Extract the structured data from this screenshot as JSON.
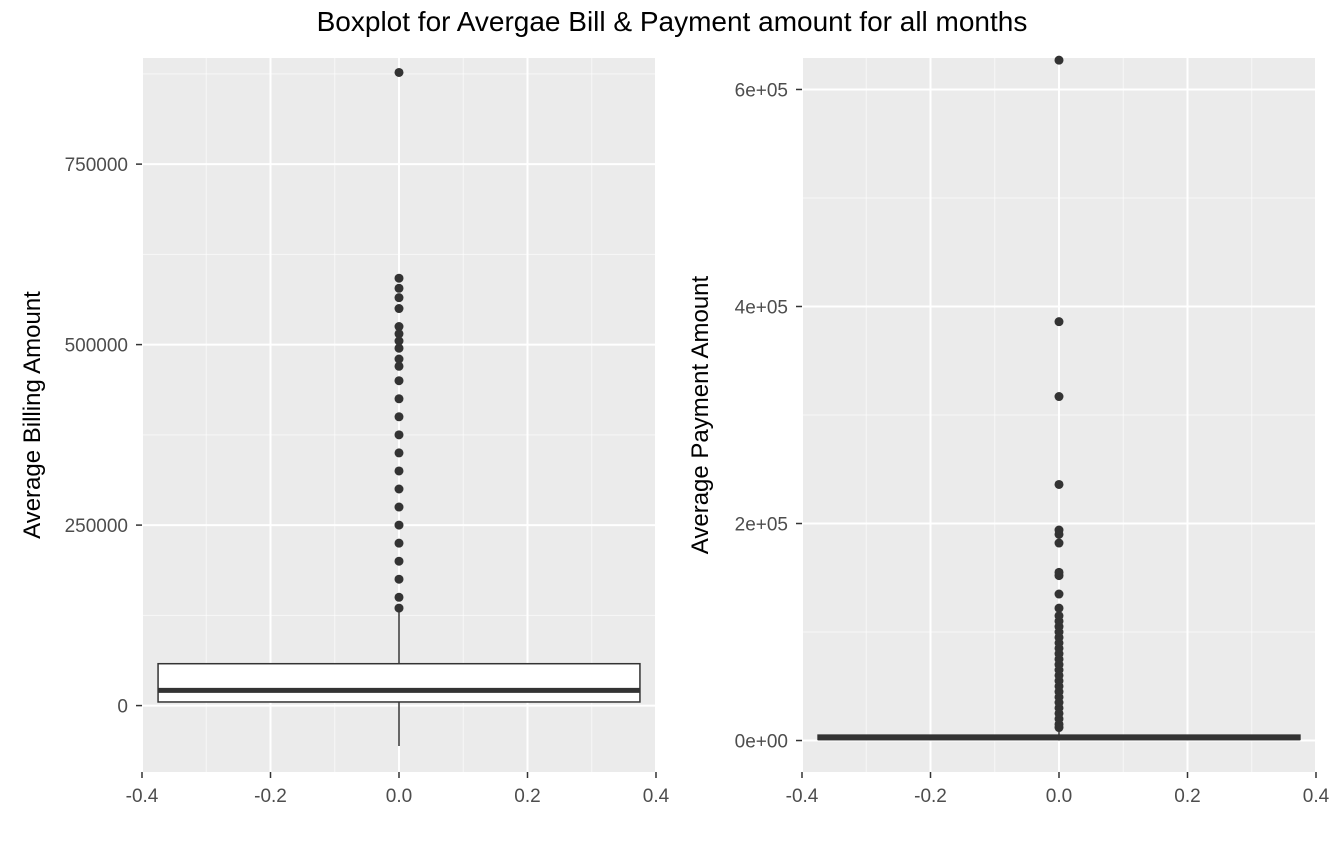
{
  "title": "Boxplot for Avergae Bill & Payment amount for all months",
  "colors": {
    "panel_background": "#ebebeb",
    "grid_major": "#ffffff",
    "box_fill": "#ffffff",
    "box_line": "#333333",
    "outlier": "#333333",
    "tick_text": "#4d4d4d"
  },
  "chart_data": [
    {
      "type": "boxplot",
      "title": "",
      "xlabel": "",
      "ylabel": "Average Billing Amount",
      "xlim": [
        -0.4,
        0.4
      ],
      "ylim": [
        -92000,
        897000
      ],
      "x_ticks": [
        -0.4,
        -0.2,
        0.0,
        0.2,
        0.4
      ],
      "x_tick_labels": [
        "-0.4",
        "-0.2",
        "0.0",
        "0.2",
        "0.4"
      ],
      "y_ticks": [
        0,
        250000,
        500000,
        750000
      ],
      "y_tick_labels": [
        "0",
        "250000",
        "500000",
        "750000"
      ],
      "grid": true,
      "box": {
        "x_center": 0.0,
        "width": 0.75,
        "lower_whisker": -56000,
        "q1": 5000,
        "median": 21000,
        "q3": 58000,
        "upper_whisker": 132000
      },
      "outliers": [
        135000,
        150000,
        175000,
        200000,
        225000,
        250000,
        275000,
        300000,
        325000,
        350000,
        375000,
        400000,
        425000,
        450000,
        470000,
        480000,
        495000,
        505000,
        515000,
        525000,
        550000,
        565000,
        578000,
        592000,
        877000
      ]
    },
    {
      "type": "boxplot",
      "title": "",
      "xlabel": "",
      "ylabel": "Average Payment Amount",
      "xlim": [
        -0.4,
        0.4
      ],
      "ylim": [
        -29000,
        629000
      ],
      "x_ticks": [
        -0.4,
        -0.2,
        0.0,
        0.2,
        0.4
      ],
      "x_tick_labels": [
        "-0.4",
        "-0.2",
        "0.0",
        "0.2",
        "0.4"
      ],
      "y_ticks": [
        0,
        200000,
        400000,
        600000
      ],
      "y_tick_labels": [
        "0e+00",
        "2e+05",
        "4e+05",
        "6e+05"
      ],
      "grid": true,
      "box": {
        "x_center": 0.0,
        "width": 0.75,
        "lower_whisker": 0,
        "q1": 1000,
        "median": 2500,
        "q3": 5000,
        "upper_whisker": 11000
      },
      "outliers": [
        12000,
        15000,
        20000,
        25000,
        30000,
        35000,
        40000,
        45000,
        50000,
        55000,
        60000,
        65000,
        70000,
        75000,
        80000,
        85000,
        90000,
        95000,
        100000,
        105000,
        110000,
        115000,
        122000,
        135000,
        152000,
        155000,
        182000,
        190000,
        194000,
        236000,
        317000,
        386000,
        627000
      ]
    }
  ]
}
